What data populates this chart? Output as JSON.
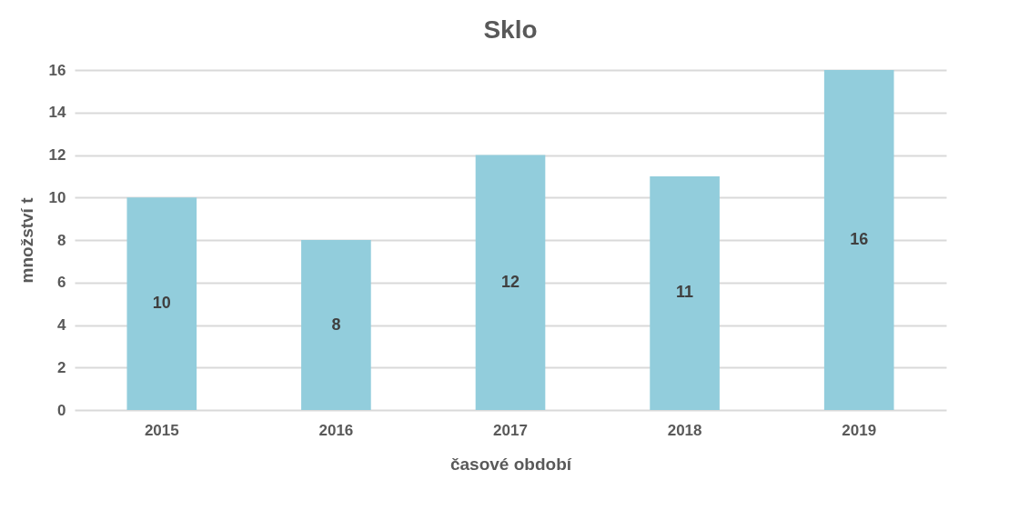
{
  "chart_data": {
    "type": "bar",
    "title": "Sklo",
    "xlabel": "časové období",
    "ylabel": "množství t",
    "categories": [
      "2015",
      "2016",
      "2017",
      "2018",
      "2019"
    ],
    "values": [
      10,
      8,
      12,
      11,
      16
    ],
    "color": "#92cddc",
    "ylim": [
      0,
      16
    ],
    "yticks": [
      0,
      2,
      4,
      6,
      8,
      10,
      12,
      14,
      16
    ],
    "grid": "y",
    "data_labels": true
  }
}
